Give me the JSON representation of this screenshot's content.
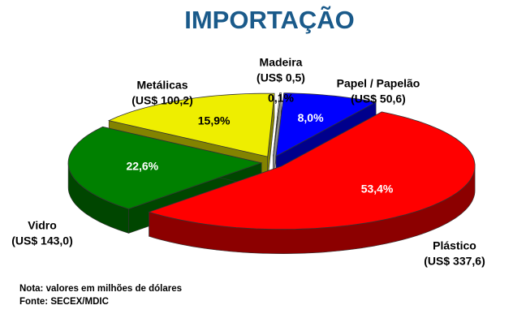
{
  "chart_data": {
    "type": "pie3d",
    "title": "IMPORTAÇÃO",
    "categories": [
      "Madeira",
      "Papel / Papelão",
      "Plástico",
      "Vidro",
      "Metálicas"
    ],
    "amount_labels": [
      "(US$ 0,5)",
      "(US$ 50,6)",
      "(US$ 337,6)",
      "(US$ 143,0)",
      "(US$ 100,2)"
    ],
    "values": [
      0.1,
      8.0,
      53.4,
      22.6,
      15.9
    ],
    "value_labels": [
      "0,1%",
      "8,0%",
      "53,4%",
      "22,6%",
      "15,9%"
    ],
    "colors": [
      "#ffffff",
      "#0000ff",
      "#ff0000",
      "#008000",
      "#eeee00"
    ],
    "notes": [
      "Nota: valores em milhões de dólares",
      "Fonte: SECEX/MDIC"
    ]
  }
}
